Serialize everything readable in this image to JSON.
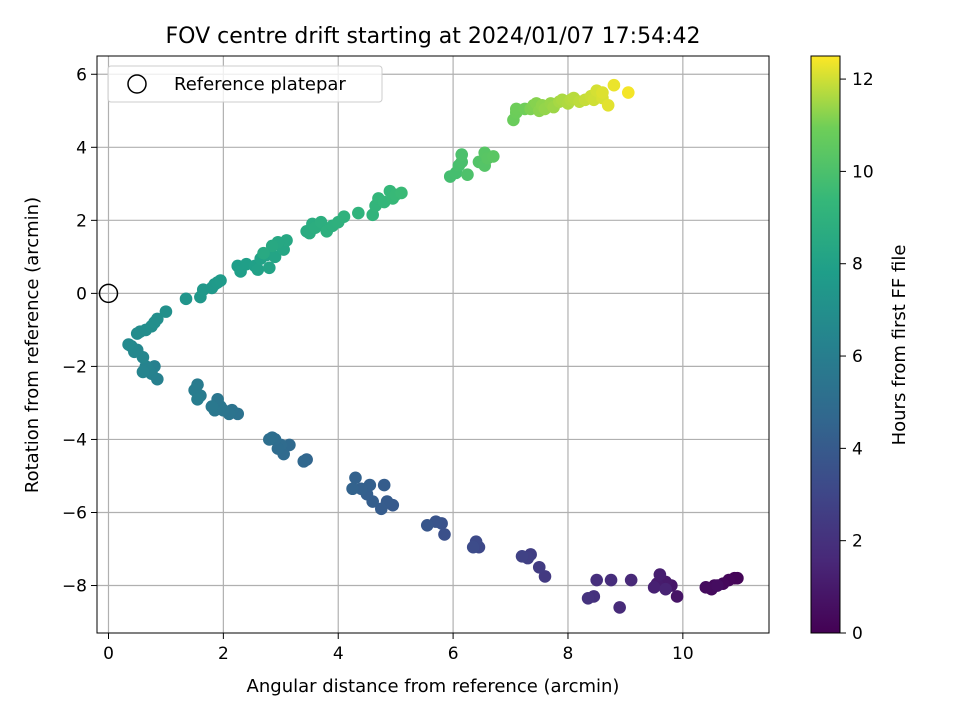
{
  "chart_data": {
    "type": "scatter",
    "title": "FOV centre drift starting at 2024/01/07 17:54:42",
    "xlabel": "Angular distance from reference (arcmin)",
    "ylabel": "Rotation from reference (arcmin)",
    "xlim": [
      -0.2,
      11.5
    ],
    "ylim": [
      -9.3,
      6.5
    ],
    "xticks": [
      0,
      2,
      4,
      6,
      8,
      10
    ],
    "yticks": [
      -8,
      -6,
      -4,
      -2,
      0,
      2,
      4,
      6
    ],
    "grid": true,
    "legend": {
      "placement": "top-left",
      "entries": [
        {
          "label": "Reference platepar",
          "marker": "open-circle"
        }
      ]
    },
    "reference_point": {
      "x": 0,
      "y": 0
    },
    "colorbar": {
      "label": "Hours from first FF file",
      "range": [
        0,
        12.5
      ],
      "ticks": [
        0,
        2,
        4,
        6,
        8,
        10,
        12
      ],
      "colormap": "viridis"
    },
    "series": [
      {
        "points": [
          [
            10.9,
            -7.8,
            0.1
          ],
          [
            10.95,
            -7.8,
            0.15
          ],
          [
            10.8,
            -7.85,
            0.2
          ],
          [
            10.7,
            -7.95,
            0.3
          ],
          [
            10.55,
            -8.0,
            0.35
          ],
          [
            10.5,
            -8.1,
            0.4
          ],
          [
            10.4,
            -8.05,
            0.45
          ],
          [
            10.6,
            -8.0,
            0.5
          ],
          [
            9.9,
            -8.3,
            0.8
          ],
          [
            9.8,
            -8.0,
            0.9
          ],
          [
            9.7,
            -7.9,
            1.0
          ],
          [
            9.55,
            -7.95,
            1.1
          ],
          [
            9.6,
            -7.7,
            1.2
          ],
          [
            9.5,
            -8.05,
            1.3
          ],
          [
            9.7,
            -8.1,
            1.4
          ],
          [
            9.1,
            -7.85,
            1.6
          ],
          [
            8.9,
            -8.6,
            1.7
          ],
          [
            8.75,
            -7.85,
            1.8
          ],
          [
            8.5,
            -7.85,
            1.9
          ],
          [
            8.45,
            -8.3,
            2.0
          ],
          [
            8.35,
            -8.35,
            2.1
          ],
          [
            7.6,
            -7.75,
            2.4
          ],
          [
            7.5,
            -7.5,
            2.5
          ],
          [
            7.35,
            -7.15,
            2.6
          ],
          [
            7.3,
            -7.25,
            2.7
          ],
          [
            7.2,
            -7.2,
            2.8
          ],
          [
            6.45,
            -6.95,
            3.1
          ],
          [
            6.4,
            -6.8,
            3.2
          ],
          [
            6.35,
            -6.95,
            3.3
          ],
          [
            5.85,
            -6.6,
            3.5
          ],
          [
            5.8,
            -6.3,
            3.6
          ],
          [
            5.7,
            -6.25,
            3.7
          ],
          [
            5.55,
            -6.35,
            3.8
          ],
          [
            4.95,
            -5.8,
            4.0
          ],
          [
            4.85,
            -5.7,
            4.05
          ],
          [
            4.75,
            -5.9,
            4.1
          ],
          [
            4.8,
            -5.25,
            4.15
          ],
          [
            4.6,
            -5.7,
            4.2
          ],
          [
            4.5,
            -5.5,
            4.25
          ],
          [
            4.55,
            -5.25,
            4.3
          ],
          [
            4.4,
            -5.35,
            4.35
          ],
          [
            4.3,
            -5.05,
            4.4
          ],
          [
            4.25,
            -5.35,
            4.45
          ],
          [
            3.45,
            -4.55,
            4.6
          ],
          [
            3.4,
            -4.6,
            4.7
          ],
          [
            3.15,
            -4.15,
            4.8
          ],
          [
            3.05,
            -4.4,
            4.85
          ],
          [
            3.0,
            -4.15,
            4.9
          ],
          [
            2.95,
            -4.25,
            4.95
          ],
          [
            2.9,
            -4.0,
            5.0
          ],
          [
            2.85,
            -3.95,
            5.05
          ],
          [
            2.8,
            -4.0,
            5.1
          ],
          [
            2.25,
            -3.3,
            5.3
          ],
          [
            2.15,
            -3.2,
            5.35
          ],
          [
            2.1,
            -3.3,
            5.4
          ],
          [
            2.0,
            -3.2,
            5.45
          ],
          [
            1.95,
            -3.1,
            5.5
          ],
          [
            1.9,
            -2.9,
            5.55
          ],
          [
            1.85,
            -3.2,
            5.6
          ],
          [
            1.8,
            -3.1,
            5.65
          ],
          [
            1.6,
            -2.8,
            5.8
          ],
          [
            1.55,
            -2.5,
            5.85
          ],
          [
            1.5,
            -2.65,
            5.9
          ],
          [
            1.55,
            -2.9,
            5.95
          ],
          [
            0.85,
            -2.35,
            6.1
          ],
          [
            0.8,
            -2.0,
            6.15
          ],
          [
            0.75,
            -2.2,
            6.2
          ],
          [
            0.7,
            -2.1,
            6.25
          ],
          [
            0.65,
            -2.0,
            6.3
          ],
          [
            0.6,
            -2.15,
            6.35
          ],
          [
            0.6,
            -1.75,
            6.45
          ],
          [
            0.5,
            -1.55,
            6.5
          ],
          [
            0.45,
            -1.6,
            6.55
          ],
          [
            0.4,
            -1.45,
            6.6
          ],
          [
            0.35,
            -1.4,
            6.65
          ],
          [
            0.5,
            -1.1,
            6.75
          ],
          [
            0.55,
            -1.05,
            6.8
          ],
          [
            0.65,
            -1.0,
            6.85
          ],
          [
            0.75,
            -0.9,
            6.9
          ],
          [
            0.8,
            -0.8,
            6.95
          ],
          [
            0.85,
            -0.7,
            7.0
          ],
          [
            1.0,
            -0.5,
            7.05
          ],
          [
            1.35,
            -0.15,
            7.3
          ],
          [
            1.6,
            -0.1,
            7.4
          ],
          [
            1.65,
            0.1,
            7.45
          ],
          [
            1.8,
            0.15,
            7.5
          ],
          [
            1.85,
            0.25,
            7.55
          ],
          [
            1.9,
            0.3,
            7.6
          ],
          [
            1.95,
            0.35,
            7.65
          ],
          [
            2.25,
            0.75,
            7.8
          ],
          [
            2.3,
            0.6,
            7.85
          ],
          [
            2.4,
            0.8,
            7.9
          ],
          [
            2.55,
            0.75,
            7.95
          ],
          [
            2.6,
            0.65,
            8.0
          ],
          [
            2.65,
            0.95,
            8.05
          ],
          [
            2.75,
            1.05,
            8.1
          ],
          [
            2.8,
            0.7,
            8.15
          ],
          [
            2.9,
            1.0,
            8.2
          ],
          [
            3.0,
            1.3,
            8.25
          ],
          [
            3.05,
            1.2,
            8.3
          ],
          [
            3.1,
            1.45,
            8.35
          ],
          [
            2.95,
            1.4,
            8.4
          ],
          [
            2.85,
            1.3,
            8.45
          ],
          [
            2.7,
            1.1,
            8.5
          ],
          [
            3.45,
            1.7,
            8.6
          ],
          [
            3.5,
            1.65,
            8.65
          ],
          [
            3.55,
            1.9,
            8.7
          ],
          [
            3.6,
            1.8,
            8.75
          ],
          [
            3.7,
            1.95,
            8.8
          ],
          [
            3.8,
            1.7,
            8.85
          ],
          [
            3.9,
            1.85,
            8.9
          ],
          [
            4.0,
            1.95,
            8.95
          ],
          [
            4.1,
            2.1,
            9.0
          ],
          [
            4.35,
            2.2,
            9.1
          ],
          [
            4.6,
            2.15,
            9.15
          ],
          [
            4.65,
            2.4,
            9.2
          ],
          [
            4.7,
            2.6,
            9.25
          ],
          [
            4.8,
            2.5,
            9.3
          ],
          [
            4.9,
            2.8,
            9.35
          ],
          [
            4.95,
            2.6,
            9.4
          ],
          [
            5.0,
            2.7,
            9.45
          ],
          [
            5.1,
            2.75,
            9.5
          ],
          [
            5.95,
            3.2,
            9.8
          ],
          [
            6.05,
            3.3,
            9.85
          ],
          [
            6.1,
            3.5,
            9.9
          ],
          [
            6.15,
            3.6,
            9.95
          ],
          [
            6.15,
            3.8,
            10.0
          ],
          [
            6.25,
            3.25,
            10.05
          ],
          [
            6.45,
            3.6,
            10.2
          ],
          [
            6.55,
            3.5,
            10.25
          ],
          [
            6.55,
            3.85,
            10.3
          ],
          [
            6.6,
            3.7,
            10.35
          ],
          [
            6.7,
            3.75,
            10.4
          ],
          [
            7.05,
            4.75,
            10.8
          ],
          [
            7.1,
            4.95,
            10.85
          ],
          [
            7.1,
            5.05,
            10.9
          ],
          [
            7.25,
            5.05,
            10.95
          ],
          [
            7.35,
            5.05,
            11.1
          ],
          [
            7.4,
            5.15,
            11.15
          ],
          [
            7.45,
            5.2,
            11.2
          ],
          [
            7.5,
            5.0,
            11.25
          ],
          [
            7.55,
            5.15,
            11.3
          ],
          [
            7.6,
            5.05,
            11.35
          ],
          [
            7.7,
            5.2,
            11.4
          ],
          [
            7.75,
            5.1,
            11.45
          ],
          [
            7.85,
            5.25,
            11.55
          ],
          [
            7.9,
            5.3,
            11.6
          ],
          [
            8.0,
            5.2,
            11.65
          ],
          [
            8.05,
            5.3,
            11.7
          ],
          [
            8.1,
            5.35,
            11.75
          ],
          [
            8.2,
            5.25,
            11.8
          ],
          [
            8.3,
            5.3,
            11.9
          ],
          [
            8.4,
            5.4,
            11.95
          ],
          [
            8.45,
            5.3,
            12.0
          ],
          [
            8.5,
            5.55,
            12.05
          ],
          [
            8.6,
            5.35,
            12.1
          ],
          [
            8.6,
            5.5,
            12.15
          ],
          [
            8.7,
            5.15,
            12.2
          ],
          [
            8.8,
            5.7,
            12.3
          ],
          [
            9.05,
            5.5,
            12.4
          ]
        ]
      }
    ]
  }
}
